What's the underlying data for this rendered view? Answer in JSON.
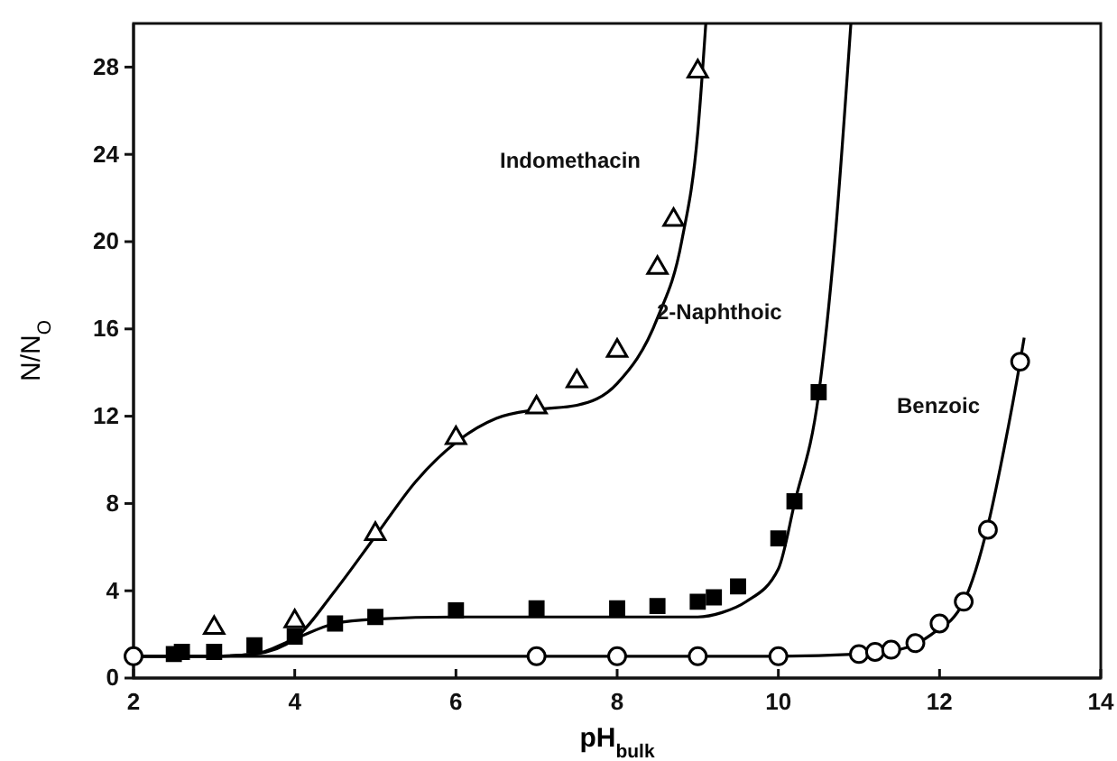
{
  "chart_data": {
    "type": "scatter",
    "xlabel": "pH$_{bulk}$",
    "ylabel": "N/N$_{O}$",
    "xlim": [
      2,
      14
    ],
    "ylim": [
      0,
      30
    ],
    "xticks": [
      2,
      4,
      6,
      8,
      10,
      12,
      14
    ],
    "yticks": [
      0,
      4,
      8,
      12,
      16,
      20,
      24,
      28
    ],
    "grid": false,
    "series": [
      {
        "type": "scatter",
        "marker": "triangle",
        "color": "#000000",
        "x": [
          3,
          4,
          5,
          6,
          7,
          7.5,
          8,
          8.5,
          8.7,
          9
        ],
        "values": [
          2.3,
          2.6,
          6.6,
          11.0,
          12.4,
          13.6,
          15.0,
          18.8,
          21.0,
          27.8
        ]
      },
      {
        "type": "scatter",
        "marker": "square",
        "color": "#000000",
        "x": [
          2.5,
          2.6,
          3,
          3.5,
          4,
          4.5,
          5,
          6,
          7,
          8,
          8.5,
          9,
          9.2,
          9.5,
          10,
          10.2,
          10.5
        ],
        "values": [
          1.1,
          1.2,
          1.2,
          1.5,
          1.9,
          2.5,
          2.8,
          3.1,
          3.2,
          3.2,
          3.3,
          3.5,
          3.7,
          4.2,
          6.4,
          8.1,
          13.1
        ]
      },
      {
        "type": "scatter",
        "marker": "circle",
        "color": "#000000",
        "x": [
          2,
          7,
          8,
          9,
          10,
          11,
          11.2,
          11.4,
          11.7,
          12,
          12.3,
          12.6,
          13
        ],
        "values": [
          1.0,
          1.0,
          1.0,
          1.0,
          1.0,
          1.1,
          1.2,
          1.3,
          1.6,
          2.5,
          3.5,
          6.8,
          14.5
        ]
      },
      {
        "type": "line",
        "color": "#000000",
        "x": [
          2,
          3,
          3.5,
          4,
          4.5,
          5,
          5.5,
          6,
          6.5,
          7,
          7.5,
          8,
          8.5,
          8.8,
          9,
          9.1
        ],
        "values": [
          1.0,
          1.0,
          1.1,
          1.8,
          4.0,
          6.5,
          9.0,
          10.8,
          11.9,
          12.3,
          12.5,
          13.5,
          16.5,
          20.0,
          25.0,
          30.0
        ]
      },
      {
        "type": "line",
        "color": "#000000",
        "x": [
          2,
          3,
          3.5,
          4,
          4.5,
          5,
          6,
          7,
          8,
          9,
          9.3,
          9.6,
          10,
          10.2,
          10.5,
          10.7,
          10.9
        ],
        "values": [
          1.0,
          1.0,
          1.1,
          1.8,
          2.5,
          2.7,
          2.8,
          2.8,
          2.8,
          2.8,
          3.0,
          3.5,
          5.0,
          8.0,
          13.0,
          20.0,
          30.0
        ]
      },
      {
        "type": "line",
        "color": "#000000",
        "x": [
          2,
          6,
          10,
          11,
          11.5,
          11.9,
          12.3,
          12.6,
          12.8,
          13,
          13.05
        ],
        "values": [
          1.0,
          1.0,
          1.0,
          1.1,
          1.3,
          2.0,
          3.5,
          7.0,
          10.5,
          14.5,
          15.6
        ]
      }
    ],
    "annotations": [
      "Indomethacin",
      "2-Naphthoic",
      "Benzoic"
    ]
  }
}
